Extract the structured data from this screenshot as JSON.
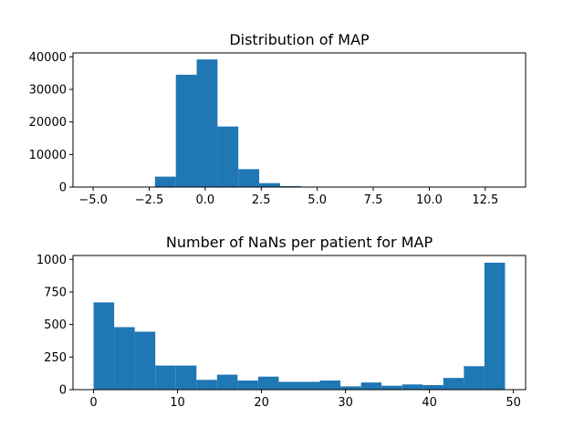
{
  "chart_data": [
    {
      "type": "bar",
      "title": "Distribution of MAP",
      "xlabel": "",
      "ylabel": "",
      "xlim": [
        -5.9,
        14.3
      ],
      "ylim": [
        0,
        41200
      ],
      "x_ticks": [
        -5.0,
        -2.5,
        0.0,
        2.5,
        5.0,
        7.5,
        10.0,
        12.5
      ],
      "x_tick_labels": [
        "−5.0",
        "−2.5",
        "0.0",
        "2.5",
        "5.0",
        "7.5",
        "10.0",
        "12.5"
      ],
      "y_ticks": [
        0,
        10000,
        20000,
        30000,
        40000
      ],
      "y_tick_labels": [
        "0",
        "10000",
        "20000",
        "30000",
        "40000"
      ],
      "grid": false,
      "color": "#1f77b4",
      "bins": [
        {
          "x0": -5.03,
          "x1": -4.1,
          "value": 10
        },
        {
          "x0": -4.1,
          "x1": -3.17,
          "value": 20
        },
        {
          "x0": -3.17,
          "x1": -2.24,
          "value": 80
        },
        {
          "x0": -2.24,
          "x1": -1.31,
          "value": 3200
        },
        {
          "x0": -1.31,
          "x1": -0.38,
          "value": 34500
        },
        {
          "x0": -0.38,
          "x1": 0.55,
          "value": 39200
        },
        {
          "x0": 0.55,
          "x1": 1.48,
          "value": 18600
        },
        {
          "x0": 1.48,
          "x1": 2.41,
          "value": 5500
        },
        {
          "x0": 2.41,
          "x1": 3.34,
          "value": 1200
        },
        {
          "x0": 3.34,
          "x1": 4.27,
          "value": 300
        },
        {
          "x0": 4.27,
          "x1": 5.2,
          "value": 80
        },
        {
          "x0": 5.2,
          "x1": 6.13,
          "value": 30
        },
        {
          "x0": 6.13,
          "x1": 7.06,
          "value": 15
        },
        {
          "x0": 7.06,
          "x1": 7.99,
          "value": 10
        },
        {
          "x0": 7.99,
          "x1": 8.92,
          "value": 5
        },
        {
          "x0": 8.92,
          "x1": 9.85,
          "value": 5
        },
        {
          "x0": 9.85,
          "x1": 10.78,
          "value": 3
        },
        {
          "x0": 10.78,
          "x1": 11.71,
          "value": 2
        },
        {
          "x0": 11.71,
          "x1": 12.64,
          "value": 1
        },
        {
          "x0": 12.64,
          "x1": 13.57,
          "value": 1
        }
      ]
    },
    {
      "type": "bar",
      "title": "Number of NaNs per patient for MAP",
      "xlabel": "",
      "ylabel": "",
      "xlim": [
        -2.45,
        51.45
      ],
      "ylim": [
        0,
        1030
      ],
      "x_ticks": [
        0,
        10,
        20,
        30,
        40,
        50
      ],
      "x_tick_labels": [
        "0",
        "10",
        "20",
        "30",
        "40",
        "50"
      ],
      "y_ticks": [
        0,
        250,
        500,
        750,
        1000
      ],
      "y_tick_labels": [
        "0",
        "250",
        "500",
        "750",
        "1000"
      ],
      "grid": false,
      "color": "#1f77b4",
      "bins": [
        {
          "x0": 0.0,
          "x1": 2.45,
          "value": 670
        },
        {
          "x0": 2.45,
          "x1": 4.9,
          "value": 480
        },
        {
          "x0": 4.9,
          "x1": 7.35,
          "value": 445
        },
        {
          "x0": 7.35,
          "x1": 9.8,
          "value": 185
        },
        {
          "x0": 9.8,
          "x1": 12.25,
          "value": 185
        },
        {
          "x0": 12.25,
          "x1": 14.7,
          "value": 75
        },
        {
          "x0": 14.7,
          "x1": 17.15,
          "value": 115
        },
        {
          "x0": 17.15,
          "x1": 19.6,
          "value": 70
        },
        {
          "x0": 19.6,
          "x1": 22.05,
          "value": 100
        },
        {
          "x0": 22.05,
          "x1": 24.5,
          "value": 60
        },
        {
          "x0": 24.5,
          "x1": 26.95,
          "value": 60
        },
        {
          "x0": 26.95,
          "x1": 29.4,
          "value": 70
        },
        {
          "x0": 29.4,
          "x1": 31.85,
          "value": 25
        },
        {
          "x0": 31.85,
          "x1": 34.3,
          "value": 55
        },
        {
          "x0": 34.3,
          "x1": 36.75,
          "value": 30
        },
        {
          "x0": 36.75,
          "x1": 39.2,
          "value": 40
        },
        {
          "x0": 39.2,
          "x1": 41.65,
          "value": 35
        },
        {
          "x0": 41.65,
          "x1": 44.1,
          "value": 90
        },
        {
          "x0": 44.1,
          "x1": 46.55,
          "value": 180
        },
        {
          "x0": 46.55,
          "x1": 49.0,
          "value": 975
        }
      ]
    }
  ]
}
